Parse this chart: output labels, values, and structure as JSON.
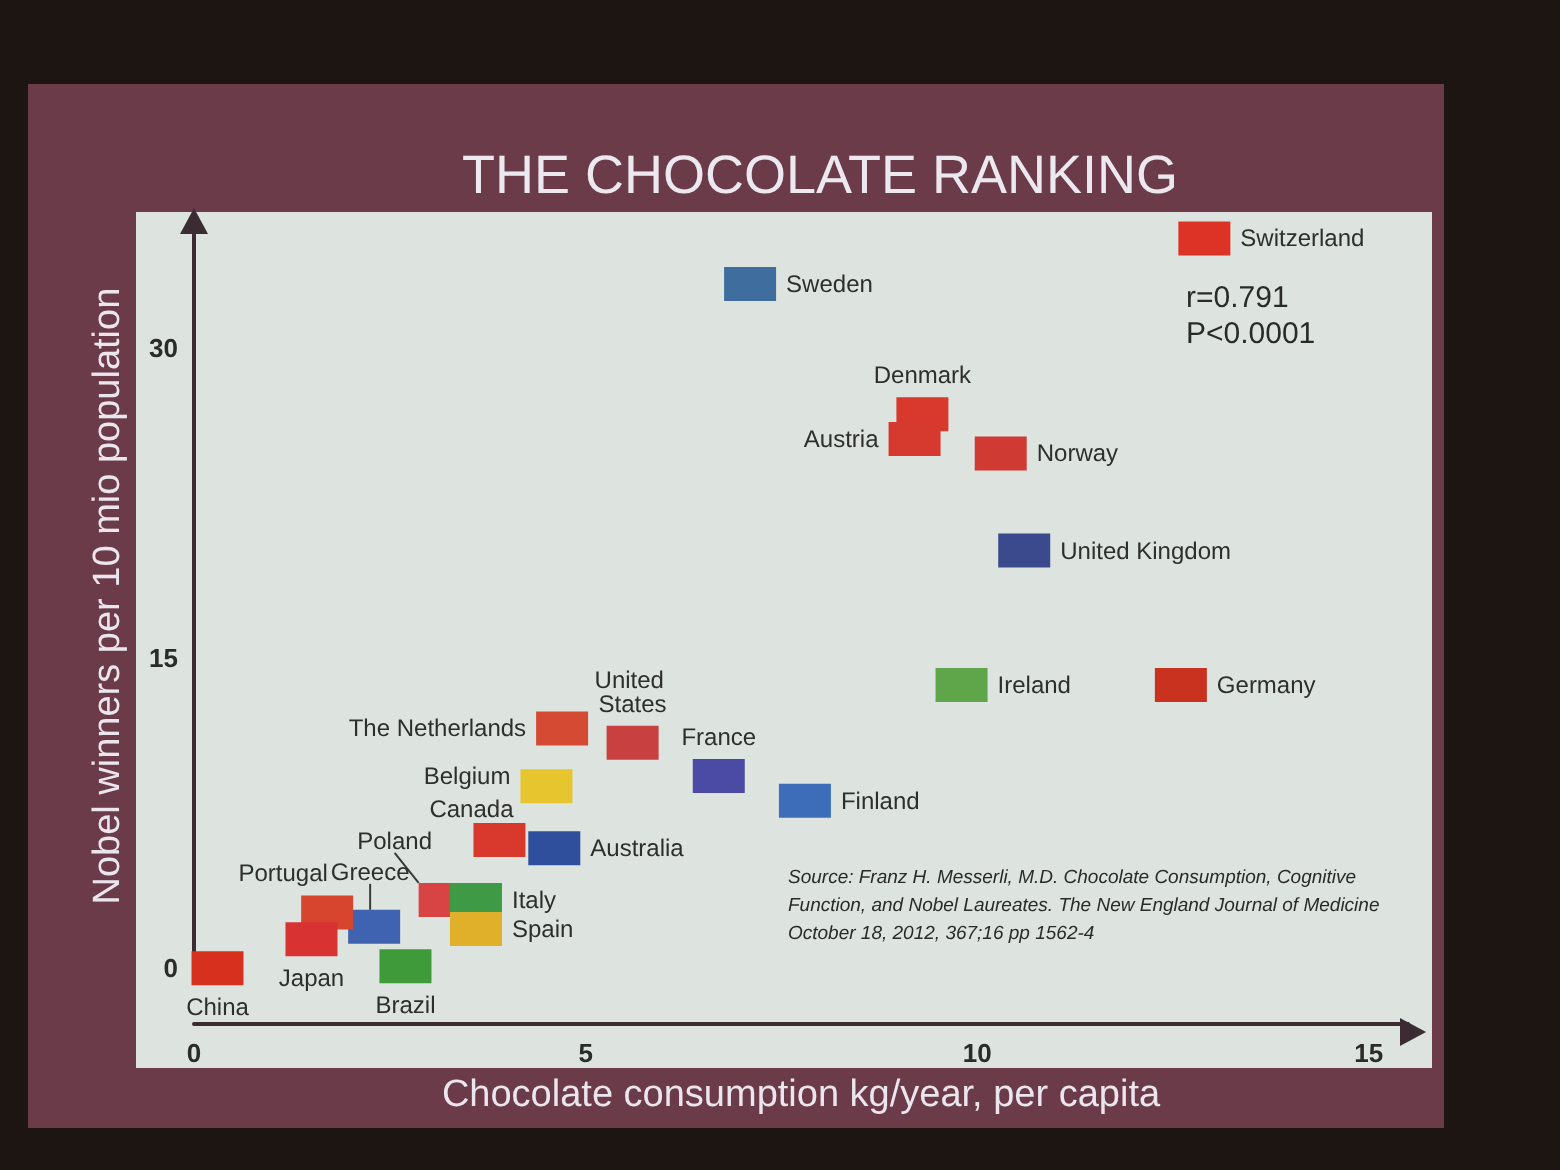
{
  "chart_data": {
    "type": "scatter",
    "title": "THE CHOCOLATE RANKING",
    "xlabel": "Chocolate consumption kg/year, per capita",
    "ylabel": "Nobel winners per 10 mio population",
    "xlim": [
      0,
      15.5
    ],
    "ylim": [
      0,
      36
    ],
    "xticks": [
      0,
      5,
      10,
      15
    ],
    "yticks": [
      0,
      15,
      30
    ],
    "marker": "square",
    "annotations": [
      "r=0.791",
      "P<0.0001",
      "Source: Franz H. Messerli, M.D. Chocolate Consumption, Cognitive Function, and Nobel Laureates. The New England Journal of Medicine October 18, 2012, 367;16 pp 1562-4"
    ],
    "series": [
      {
        "name": "Switzerland",
        "color": "#dd3326",
        "x": [
          12.9
        ],
        "values": [
          35.3
        ]
      },
      {
        "name": "Sweden",
        "color": "#3e6d9e",
        "x": [
          7.1
        ],
        "values": [
          33.1
        ]
      },
      {
        "name": "Denmark",
        "color": "#d8392c",
        "x": [
          9.3
        ],
        "values": [
          26.8
        ]
      },
      {
        "name": "Austria",
        "color": "#d63a2e",
        "x": [
          9.2
        ],
        "values": [
          25.6
        ]
      },
      {
        "name": "Norway",
        "color": "#cf3a32",
        "x": [
          10.3
        ],
        "values": [
          24.9
        ]
      },
      {
        "name": "United Kingdom",
        "color": "#3a4a8c",
        "x": [
          10.6
        ],
        "values": [
          20.2
        ]
      },
      {
        "name": "Ireland",
        "color": "#5fa64a",
        "x": [
          9.8
        ],
        "values": [
          13.7
        ]
      },
      {
        "name": "Germany",
        "color": "#c8321e",
        "x": [
          12.6
        ],
        "values": [
          13.7
        ]
      },
      {
        "name": "The Netherlands",
        "color": "#d44a32",
        "x": [
          4.7
        ],
        "values": [
          11.6
        ]
      },
      {
        "name": "United States",
        "color": "#c84040",
        "x": [
          5.6
        ],
        "values": [
          10.9
        ]
      },
      {
        "name": "France",
        "color": "#4b4ba6",
        "x": [
          6.7
        ],
        "values": [
          9.3
        ]
      },
      {
        "name": "Finland",
        "color": "#3d6cb8",
        "x": [
          7.8
        ],
        "values": [
          8.1
        ]
      },
      {
        "name": "Belgium",
        "color": "#e6c52e",
        "x": [
          4.5
        ],
        "values": [
          8.8
        ]
      },
      {
        "name": "Canada",
        "color": "#d8392c",
        "x": [
          3.9
        ],
        "values": [
          6.2
        ]
      },
      {
        "name": "Australia",
        "color": "#2f4f9c",
        "x": [
          4.6
        ],
        "values": [
          5.8
        ]
      },
      {
        "name": "Poland",
        "color": "#d84444",
        "x": [
          3.2
        ],
        "values": [
          3.3
        ]
      },
      {
        "name": "Italy",
        "color": "#3f9a46",
        "x": [
          3.6
        ],
        "values": [
          3.3
        ]
      },
      {
        "name": "Spain",
        "color": "#e0b02a",
        "x": [
          3.6
        ],
        "values": [
          1.9
        ]
      },
      {
        "name": "Greece",
        "color": "#3f63b0",
        "x": [
          2.3
        ],
        "values": [
          2.0
        ]
      },
      {
        "name": "Portugal",
        "color": "#d8452e",
        "x": [
          1.7
        ],
        "values": [
          2.7
        ]
      },
      {
        "name": "Japan",
        "color": "#d83232",
        "x": [
          1.5
        ],
        "values": [
          1.4
        ]
      },
      {
        "name": "Brazil",
        "color": "#3f9a3a",
        "x": [
          2.7
        ],
        "values": [
          0.1
        ]
      },
      {
        "name": "China",
        "color": "#d8301e",
        "x": [
          0.3
        ],
        "values": [
          0.0
        ]
      }
    ]
  }
}
